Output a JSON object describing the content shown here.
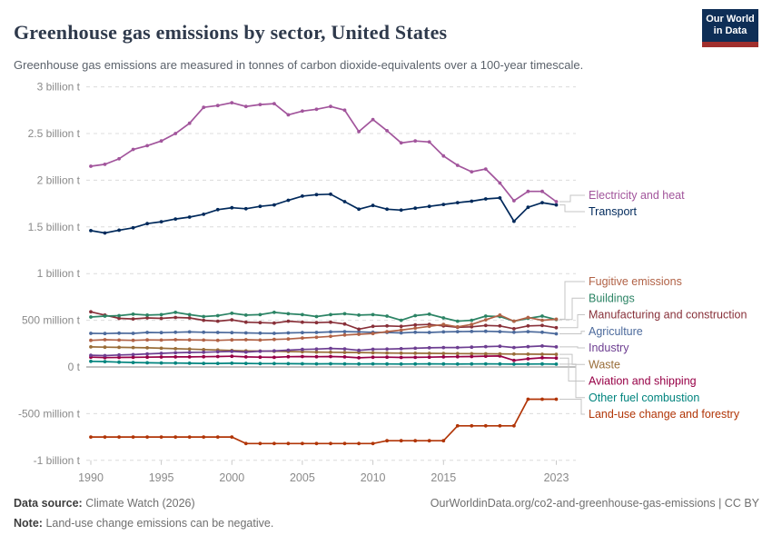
{
  "header": {
    "title": "Greenhouse gas emissions by sector, United States",
    "subtitle": "Greenhouse gas emissions are measured in tonnes of carbon dioxide-equivalents over a 100-year timescale.",
    "logo_line1": "Our World",
    "logo_line2": "in Data",
    "logo_bg_color": "#0E2E56",
    "logo_bar_color": "#A02F2D"
  },
  "footer": {
    "source_label": "Data source:",
    "source_value": "Climate Watch (2026)",
    "note_label": "Note:",
    "note_value": "Land-use change emissions can be negative.",
    "attribution": "OurWorldinData.org/co2-and-greenhouse-gas-emissions | CC BY"
  },
  "chart_data": {
    "type": "line",
    "title": "Greenhouse gas emissions by sector, United States",
    "unit": "million tonnes of CO2-equivalents (Mt)",
    "grid": true,
    "legend_position": "right",
    "ylim": [
      -1000,
      3000
    ],
    "x": [
      1990,
      1991,
      1992,
      1993,
      1994,
      1995,
      1996,
      1997,
      1998,
      1999,
      2000,
      2001,
      2002,
      2003,
      2004,
      2005,
      2006,
      2007,
      2008,
      2009,
      2010,
      2011,
      2012,
      2013,
      2014,
      2015,
      2016,
      2017,
      2018,
      2019,
      2020,
      2021,
      2022,
      2023
    ],
    "x_ticks": [
      1990,
      1995,
      2000,
      2005,
      2010,
      2015,
      2023
    ],
    "y_ticks": [
      {
        "label": "3 billion t",
        "value": 3000
      },
      {
        "label": "2.5 billion t",
        "value": 2500
      },
      {
        "label": "2 billion t",
        "value": 2000
      },
      {
        "label": "1.5 billion t",
        "value": 1500
      },
      {
        "label": "1 billion t",
        "value": 1000
      },
      {
        "label": "500 million t",
        "value": 500
      },
      {
        "label": "0 t",
        "value": 0
      },
      {
        "label": "-500 million t",
        "value": -500
      },
      {
        "label": "-1 billion t",
        "value": -1000
      }
    ],
    "series": [
      {
        "name": "Electricity and heat",
        "color": "#A2559C",
        "values": [
          2150,
          2170,
          2230,
          2330,
          2370,
          2420,
          2500,
          2610,
          2780,
          2800,
          2830,
          2790,
          2810,
          2820,
          2700,
          2740,
          2760,
          2790,
          2750,
          2520,
          2650,
          2530,
          2400,
          2420,
          2410,
          2260,
          2160,
          2090,
          2120,
          1970,
          1780,
          1880,
          1880,
          1770
        ]
      },
      {
        "name": "Transport",
        "color": "#00295B",
        "values": [
          1460,
          1435,
          1465,
          1490,
          1535,
          1555,
          1585,
          1605,
          1635,
          1685,
          1705,
          1695,
          1720,
          1735,
          1785,
          1830,
          1845,
          1850,
          1770,
          1690,
          1730,
          1690,
          1680,
          1700,
          1720,
          1740,
          1760,
          1775,
          1800,
          1810,
          1560,
          1710,
          1760,
          1735
        ]
      },
      {
        "name": "Fugitive emissions",
        "color": "#B16246",
        "values": [
          285,
          292,
          288,
          285,
          290,
          288,
          292,
          290,
          288,
          285,
          290,
          292,
          288,
          295,
          300,
          310,
          318,
          328,
          342,
          350,
          358,
          378,
          395,
          415,
          435,
          455,
          430,
          455,
          505,
          555,
          490,
          530,
          500,
          512
        ]
      },
      {
        "name": "Buildings",
        "color": "#2C8465",
        "values": [
          535,
          545,
          550,
          565,
          555,
          560,
          585,
          560,
          540,
          550,
          575,
          555,
          560,
          585,
          570,
          560,
          540,
          560,
          570,
          555,
          560,
          545,
          500,
          550,
          565,
          525,
          490,
          500,
          545,
          540,
          490,
          520,
          545,
          508
        ]
      },
      {
        "name": "Manufacturing and construction",
        "color": "#883039",
        "values": [
          590,
          555,
          520,
          515,
          525,
          520,
          530,
          525,
          500,
          490,
          505,
          480,
          475,
          470,
          490,
          480,
          475,
          480,
          460,
          405,
          435,
          440,
          435,
          450,
          455,
          440,
          425,
          430,
          445,
          440,
          410,
          440,
          445,
          420
        ]
      },
      {
        "name": "Agriculture",
        "color": "#4C6A9C",
        "values": [
          360,
          358,
          362,
          360,
          370,
          368,
          372,
          375,
          372,
          370,
          368,
          365,
          362,
          360,
          365,
          368,
          370,
          375,
          378,
          375,
          372,
          370,
          365,
          372,
          370,
          375,
          378,
          380,
          382,
          378,
          372,
          378,
          372,
          355
        ]
      },
      {
        "name": "Industry",
        "color": "#6D3E91",
        "values": [
          125,
          122,
          128,
          132,
          140,
          146,
          152,
          156,
          158,
          162,
          166,
          160,
          168,
          172,
          180,
          188,
          192,
          198,
          194,
          178,
          190,
          192,
          196,
          200,
          205,
          208,
          208,
          212,
          218,
          222,
          208,
          218,
          225,
          215
        ]
      },
      {
        "name": "Waste",
        "color": "#996D39",
        "values": [
          215,
          212,
          210,
          208,
          205,
          200,
          196,
          192,
          186,
          182,
          176,
          172,
          170,
          168,
          165,
          162,
          160,
          158,
          156,
          155,
          152,
          150,
          148,
          147,
          146,
          145,
          143,
          142,
          141,
          140,
          138,
          137,
          136,
          135
        ]
      },
      {
        "name": "Aviation and shipping",
        "color": "#970046",
        "values": [
          105,
          100,
          102,
          103,
          105,
          107,
          108,
          108,
          110,
          112,
          115,
          108,
          105,
          103,
          110,
          112,
          110,
          112,
          108,
          98,
          104,
          105,
          102,
          103,
          105,
          108,
          110,
          112,
          116,
          118,
          70,
          88,
          98,
          95
        ]
      },
      {
        "name": "Other fuel combustion",
        "color": "#00847E",
        "values": [
          60,
          57,
          52,
          48,
          45,
          43,
          42,
          40,
          38,
          38,
          40,
          38,
          36,
          36,
          35,
          34,
          33,
          34,
          33,
          32,
          33,
          32,
          31,
          32,
          33,
          32,
          31,
          32,
          33,
          32,
          30,
          31,
          32,
          30
        ]
      },
      {
        "name": "Land-use change and forestry",
        "color": "#B13507",
        "values": [
          -750,
          -750,
          -750,
          -750,
          -750,
          -750,
          -750,
          -750,
          -750,
          -750,
          -750,
          -820,
          -820,
          -820,
          -820,
          -820,
          -820,
          -820,
          -820,
          -820,
          -820,
          -790,
          -790,
          -790,
          -790,
          -790,
          -630,
          -630,
          -630,
          -630,
          -630,
          -345,
          -345,
          -345
        ]
      }
    ]
  }
}
